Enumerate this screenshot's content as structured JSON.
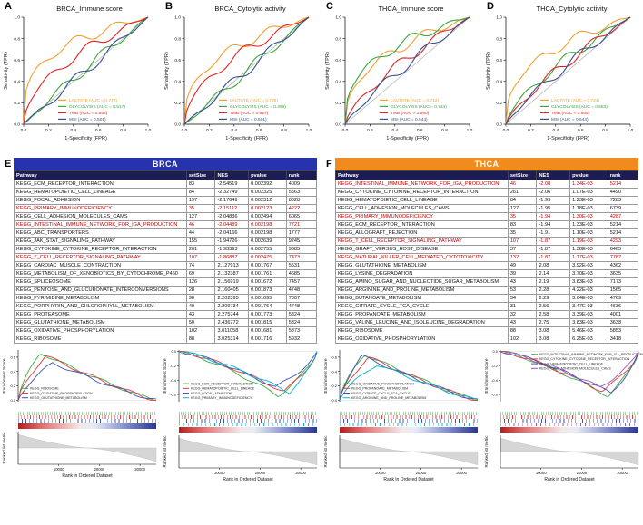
{
  "chart_data": {
    "roc_axis": {
      "x_label": "1-Specificity (FPR)",
      "y_label": "Sensitivity (TPR)",
      "ticks": [
        "0.0",
        "0.2",
        "0.4",
        "0.6",
        "0.8",
        "1.0"
      ]
    },
    "roc_panels": [
      {
        "letter": "A",
        "title": "BRCA_Immune score",
        "type": "line",
        "curves": [
          {
            "name": "LACTATE",
            "auc": 0.772,
            "color": "#f0a02e",
            "label": "LACTATE (AUC = 0.772)"
          },
          {
            "name": "GLYCOLYSIS",
            "auc": 0.517,
            "color": "#3ca63c",
            "label": "GLYCOLYSIS (AUC = 0.517)"
          },
          {
            "name": "TMB",
            "auc": 0.658,
            "color": "#e02424",
            "label": "TMB (AUC = 0.658)"
          },
          {
            "name": "MSI",
            "auc": 0.501,
            "color": "#33518f",
            "label": "MSI (AUC = 0.501)"
          }
        ]
      },
      {
        "letter": "B",
        "title": "BRCA_Cytolytic activity",
        "type": "line",
        "curves": [
          {
            "name": "LACTATE",
            "auc": 0.726,
            "color": "#f0a02e",
            "label": "LACTATE (AUC = 0.726)"
          },
          {
            "name": "GLYCOLYSIS",
            "auc": 0.498,
            "color": "#3ca63c",
            "label": "GLYCOLYSIS (AUC = 0.498)"
          },
          {
            "name": "TMB",
            "auc": 0.657,
            "color": "#e02424",
            "label": "TMB (AUC = 0.657)"
          },
          {
            "name": "MSI",
            "auc": 0.501,
            "color": "#33518f",
            "label": "MSI (AUC = 0.501)"
          }
        ]
      },
      {
        "letter": "C",
        "title": "THCA_Immune score",
        "type": "line",
        "curves": [
          {
            "name": "LACTATE",
            "auc": 0.712,
            "color": "#f0a02e",
            "label": "LACTATE (AUC = 0.712)"
          },
          {
            "name": "GLYCOLYSIS",
            "auc": 0.734,
            "color": "#3ca63c",
            "label": "GLYCOLYSIS (AUC = 0.734)"
          },
          {
            "name": "TMB",
            "auc": 0.59,
            "color": "#e02424",
            "label": "TMB (AUC = 0.590)"
          },
          {
            "name": "MSI",
            "auc": 0.544,
            "color": "#33518f",
            "label": "MSI (AUC = 0.544)"
          }
        ]
      },
      {
        "letter": "D",
        "title": "THCA_Cytolytic activity",
        "type": "line",
        "curves": [
          {
            "name": "LACTATE",
            "auc": 0.724,
            "color": "#f0a02e",
            "label": "LACTATE (AUC = 0.724)"
          },
          {
            "name": "GLYCOLYSIS",
            "auc": 0.593,
            "color": "#3ca63c",
            "label": "GLYCOLYSIS (AUC = 0.593)"
          },
          {
            "name": "TMB",
            "auc": 0.564,
            "color": "#e02424",
            "label": "TMB (AUC = 0.564)"
          },
          {
            "name": "MSI",
            "auc": 0.544,
            "color": "#33518f",
            "label": "MSI (AUC = 0.544)"
          }
        ]
      }
    ],
    "tables": [
      {
        "letter": "E",
        "title": "BRCA",
        "type": "table",
        "bar_color": "#2733ad",
        "columns": [
          "Pathway",
          "setSize",
          "NES",
          "pvalue",
          "rank"
        ],
        "rows": [
          {
            "red": false,
            "cells": [
              "KEGG_ECM_RECEPTOR_INTERACTION",
              "83",
              "-2.54519",
              "0.002392",
              "4009"
            ]
          },
          {
            "red": false,
            "cells": [
              "KEGG_HEMATOPOIETIC_CELL_LINEAGE",
              "84",
              "-2.32749",
              "0.002325",
              "5563"
            ]
          },
          {
            "red": false,
            "cells": [
              "KEGG_FOCAL_ADHESION",
              "197",
              "-2.17649",
              "0.002312",
              "8028"
            ]
          },
          {
            "red": true,
            "cells": [
              "KEGG_PRIMARY_IMMUNODEFICIENCY",
              "35",
              "-2.15112",
              "0.002123",
              "4222"
            ]
          },
          {
            "red": false,
            "cells": [
              "KEGG_CELL_ADHESION_MOLECULES_CAMS",
              "127",
              "-2.04836",
              "0.002494",
              "6065"
            ]
          },
          {
            "red": true,
            "cells": [
              "KEGG_INTESTINAL_IMMUNE_NETWORK_FOR_IGA_PRODUCTION",
              "46",
              "-2.04489",
              "0.002198",
              "7721"
            ]
          },
          {
            "red": false,
            "cells": [
              "KEGG_ABC_TRANSPORTERS",
              "44",
              "-2.04166",
              "0.002198",
              "1777"
            ]
          },
          {
            "red": false,
            "cells": [
              "KEGG_JAK_STAT_SIGNALING_PATHWAY",
              "155",
              "-1.94726",
              "0.002639",
              "9245"
            ]
          },
          {
            "red": false,
            "cells": [
              "KEGG_CYTOKINE_CYTOKINE_RECEPTOR_INTERACTION",
              "261",
              "-1.93393",
              "0.002755",
              "9685"
            ]
          },
          {
            "red": true,
            "cells": [
              "KEGG_T_CELL_RECEPTOR_SIGNALING_PATHWAY",
              "107",
              "-1.86887",
              "0.002475",
              "7473"
            ]
          },
          {
            "red": false,
            "cells": [
              "KEGG_CARDIAC_MUSCLE_CONTRACTION",
              "74",
              "2.127913",
              "0.001767",
              "5531"
            ]
          },
          {
            "red": false,
            "cells": [
              "KEGG_METABOLISM_OF_XENOBIOTICS_BY_CYTOCHROME_P450",
              "69",
              "2.132387",
              "0.001761",
              "4685"
            ]
          },
          {
            "red": false,
            "cells": [
              "KEGG_SPLICEOSOME",
              "126",
              "2.156919",
              "0.001672",
              "7457"
            ]
          },
          {
            "red": false,
            "cells": [
              "KEGG_PENTOSE_AND_GLUCURONATE_INTERCONVERSIONS",
              "28",
              "2.160405",
              "0.001873",
              "4748"
            ]
          },
          {
            "red": false,
            "cells": [
              "KEGG_PYRIMIDINE_METABOLISM",
              "98",
              "2.202395",
              "0.001695",
              "7007"
            ]
          },
          {
            "red": false,
            "cells": [
              "KEGG_PORPHYRIN_AND_CHLOROPHYLL_METABOLISM",
              "40",
              "2.209734",
              "0.001764",
              "4748"
            ]
          },
          {
            "red": false,
            "cells": [
              "KEGG_PROTEASOME",
              "43",
              "2.275744",
              "0.001773",
              "5324"
            ]
          },
          {
            "red": false,
            "cells": [
              "KEGG_GLUTATHIONE_METABOLISM",
              "50",
              "2.436772",
              "0.001815",
              "5324"
            ]
          },
          {
            "red": false,
            "cells": [
              "KEGG_OXIDATIVE_PHOSPHORYLATION",
              "102",
              "3.011058",
              "0.001681",
              "5373"
            ]
          },
          {
            "red": false,
            "cells": [
              "KEGG_RIBOSOME",
              "88",
              "3.025314",
              "0.001716",
              "5932"
            ]
          }
        ]
      },
      {
        "letter": "F",
        "title": "THCA",
        "type": "table",
        "bar_color": "#f28b1d",
        "columns": [
          "Pathway",
          "setSize",
          "NES",
          "pvalue",
          "rank"
        ],
        "rows": [
          {
            "red": true,
            "cells": [
              "KEGG_INTESTINAL_IMMUNE_NETWORK_FOR_IGA_PRODUCTION",
              "46",
              "-2.08",
              "1.34E-03",
              "5214"
            ]
          },
          {
            "red": false,
            "cells": [
              "KEGG_CYTOKINE_CYTOKINE_RECEPTOR_INTERACTION",
              "261",
              "-2.06",
              "1.07E-03",
              "4490"
            ]
          },
          {
            "red": false,
            "cells": [
              "KEGG_HEMATOPOIETIC_CELL_LINEAGE",
              "84",
              "-1.99",
              "1.23E-03",
              "7283"
            ]
          },
          {
            "red": false,
            "cells": [
              "KEGG_CELL_ADHESION_MOLECULES_CAMS",
              "127",
              "-1.95",
              "1.18E-03",
              "6739"
            ]
          },
          {
            "red": true,
            "cells": [
              "KEGG_PRIMARY_IMMUNODEFICIENCY",
              "35",
              "-1.94",
              "1.30E-03",
              "4287"
            ]
          },
          {
            "red": false,
            "cells": [
              "KEGG_ECM_RECEPTOR_INTERACTION",
              "83",
              "-1.94",
              "1.33E-03",
              "5214"
            ]
          },
          {
            "red": false,
            "cells": [
              "KEGG_ALLOGRAFT_REJECTION",
              "35",
              "-1.91",
              "1.10E-03",
              "5214"
            ]
          },
          {
            "red": true,
            "cells": [
              "KEGG_T_CELL_RECEPTOR_SIGNALING_PATHWAY",
              "107",
              "-1.87",
              "1.19E-03",
              "4293"
            ]
          },
          {
            "red": false,
            "cells": [
              "KEGG_GRAFT_VERSUS_HOST_DISEASE",
              "37",
              "-1.87",
              "1.38E-03",
              "6465"
            ]
          },
          {
            "red": true,
            "cells": [
              "KEGG_NATURAL_KILLER_CELL_MEDIATED_CYTOTOXICITY",
              "132",
              "-1.87",
              "1.17E-03",
              "7787"
            ]
          },
          {
            "red": false,
            "cells": [
              "KEGG_GLUTATHIONE_METABOLISM",
              "49",
              "2.08",
              "3.92E-03",
              "4362"
            ]
          },
          {
            "red": false,
            "cells": [
              "KEGG_LYSINE_DEGRADATION",
              "39",
              "2.14",
              "3.70E-03",
              "3635"
            ]
          },
          {
            "red": false,
            "cells": [
              "KEGG_AMINO_SUGAR_AND_NUCLEOTIDE_SUGAR_METABOLISM",
              "43",
              "2.19",
              "3.83E-03",
              "7173"
            ]
          },
          {
            "red": false,
            "cells": [
              "KEGG_ARGININE_AND_PROLINE_METABOLISM",
              "53",
              "2.28",
              "4.22E-03",
              "1565"
            ]
          },
          {
            "red": false,
            "cells": [
              "KEGG_BUTANOATE_METABOLISM",
              "34",
              "2.29",
              "3.64E-03",
              "4769"
            ]
          },
          {
            "red": false,
            "cells": [
              "KEGG_CITRATE_CYCLE_TCA_CYCLE",
              "31",
              "2.56",
              "3.47E-03",
              "4636"
            ]
          },
          {
            "red": false,
            "cells": [
              "KEGG_PROPANOATE_METABOLISM",
              "32",
              "2.58",
              "3.39E-03",
              "4001"
            ]
          },
          {
            "red": false,
            "cells": [
              "KEGG_VALINE_LEUCINE_AND_ISOLEUCINE_DEGRADATION",
              "43",
              "2.75",
              "3.83E-03",
              "3638"
            ]
          },
          {
            "red": false,
            "cells": [
              "KEGG_RIBOSOME",
              "88",
              "3.08",
              "5.46E-03",
              "5853"
            ]
          },
          {
            "red": false,
            "cells": [
              "KEGG_OXIDATIVE_PHOSPHORYLATION",
              "102",
              "3.08",
              "6.25E-03",
              "3418"
            ]
          }
        ]
      }
    ],
    "gsea": {
      "x_label": "Rank in Ordered Dataset",
      "y_label_top": "Enrichment Score",
      "y_label_bottom": "Ranked list metric",
      "x_ticks": [
        "10000",
        "20000",
        "30000"
      ],
      "plots": [
        {
          "direction": "up",
          "legend_pos": "bl",
          "series": [
            {
              "name": "KEGG_RIBOSOME",
              "color": "#3cab44",
              "peak": 0.66,
              "pos": 0.16
            },
            {
              "name": "KEGG_OXIDATIVE_PHOSPHORYLATION",
              "color": "#e23b3b",
              "peak": 0.62,
              "pos": 0.2
            },
            {
              "name": "KEGG_GLUTATHIONE_METABOLISM",
              "color": "#3f51b5",
              "peak": 0.52,
              "pos": 0.25
            }
          ]
        },
        {
          "direction": "down",
          "legend_pos": "bl",
          "series": [
            {
              "name": "KEGG_ECM_RECEPTOR_INTERACTION",
              "color": "#3cab44",
              "peak": 0.62,
              "pos": 0.72
            },
            {
              "name": "KEGG_HEMATOPOIETIC_CELL_LINEAGE",
              "color": "#e23b3b",
              "peak": 0.56,
              "pos": 0.76
            },
            {
              "name": "KEGG_FOCAL_ADHESION",
              "color": "#3f51b5",
              "peak": 0.5,
              "pos": 0.7
            },
            {
              "name": "KEGG_PRIMARY_IMMUNODEFICIENCY",
              "color": "#00b5cf",
              "peak": 0.57,
              "pos": 0.8
            }
          ]
        },
        {
          "direction": "up",
          "legend_pos": "bl",
          "series": [
            {
              "name": "KEGG_OXIDATIVE_PHOSPHORYLATION",
              "color": "#3cab44",
              "peak": 0.64,
              "pos": 0.18
            },
            {
              "name": "KEGG_PROPANOATE_METABOLISM",
              "color": "#e23b3b",
              "peak": 0.6,
              "pos": 0.21
            },
            {
              "name": "KEGG_CITRATE_CYCLE_TCA_CYCLE",
              "color": "#3f51b5",
              "peak": 0.62,
              "pos": 0.16
            },
            {
              "name": "KEGG_ARGININE_AND_PROLINE_METABOLISM",
              "color": "#00b5cf",
              "peak": 0.5,
              "pos": 0.27
            }
          ]
        },
        {
          "direction": "down",
          "legend_pos": "tr",
          "series": [
            {
              "name": "KEGG_INTESTINAL_IMMUNE_NETWORK_FOR_IGA_PRODUCTION",
              "color": "#3cab44",
              "peak": 0.62,
              "pos": 0.78
            },
            {
              "name": "KEGG_CYTOKINE_CYTOKINE_RECEPTOR_INTERACTION",
              "color": "#e23b3b",
              "peak": 0.56,
              "pos": 0.74
            },
            {
              "name": "KEGG_HEMATOPOIETIC_CELL_LINEAGE",
              "color": "#3f51b5",
              "peak": 0.58,
              "pos": 0.8
            },
            {
              "name": "KEGG_CELL_ADHESION_MOLECULES_CAMS",
              "color": "#9b59b6",
              "peak": 0.5,
              "pos": 0.72
            }
          ]
        }
      ]
    }
  }
}
